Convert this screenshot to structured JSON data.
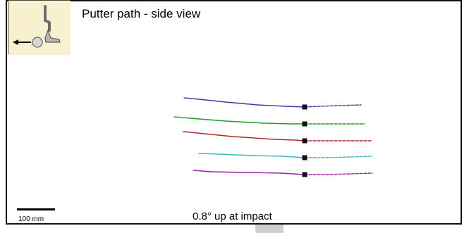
{
  "header": {
    "title": "Putter path - side view",
    "icon_name": "putter-side-view-icon"
  },
  "footer": {
    "scale_label": "100 mm",
    "summary_text": "0.8° up at impact"
  },
  "colors": {
    "frame": "#111111",
    "icon_background": "#f8f0cf",
    "impact_marker": "#111111"
  },
  "chart_data": {
    "type": "line",
    "title": "Putter path - side view",
    "xlabel": "",
    "ylabel": "",
    "legend": "none",
    "grid": false,
    "series": [
      {
        "color": "#3c3ca8",
        "pre_impact_points": [
          [
            261,
            139
          ],
          [
            282,
            141
          ],
          [
            320,
            145
          ],
          [
            365,
            149
          ],
          [
            405,
            151
          ],
          [
            432,
            152
          ]
        ],
        "post_impact_points": [
          [
            432,
            152
          ],
          [
            455,
            151
          ],
          [
            480,
            150
          ],
          [
            512,
            149
          ]
        ],
        "impact_marker": [
          432,
          152
        ]
      },
      {
        "color": "#16a020",
        "pre_impact_points": [
          [
            247,
            166
          ],
          [
            270,
            168
          ],
          [
            320,
            172
          ],
          [
            375,
            175
          ],
          [
            412,
            176
          ],
          [
            432,
            176
          ]
        ],
        "post_impact_points": [
          [
            432,
            176
          ],
          [
            460,
            176
          ],
          [
            490,
            176
          ],
          [
            517,
            176
          ]
        ],
        "impact_marker": [
          432,
          176
        ]
      },
      {
        "color": "#a82828",
        "pre_impact_points": [
          [
            260,
            187
          ],
          [
            280,
            189
          ],
          [
            330,
            194
          ],
          [
            390,
            198
          ],
          [
            418,
            199
          ],
          [
            432,
            200
          ]
        ],
        "post_impact_points": [
          [
            432,
            200
          ],
          [
            462,
            200
          ],
          [
            494,
            200
          ],
          [
            528,
            200
          ]
        ],
        "impact_marker": [
          432,
          200
        ]
      },
      {
        "color": "#42b5bc",
        "pre_impact_points": [
          [
            282,
            218
          ],
          [
            310,
            219
          ],
          [
            360,
            221
          ],
          [
            400,
            222
          ],
          [
            432,
            224
          ]
        ],
        "post_impact_points": [
          [
            432,
            224
          ],
          [
            462,
            224
          ],
          [
            496,
            223
          ],
          [
            528,
            222
          ]
        ],
        "impact_marker": [
          432,
          224
        ]
      },
      {
        "color": "#9b1fa8",
        "pre_impact_points": [
          [
            274,
            242
          ],
          [
            300,
            244
          ],
          [
            350,
            245
          ],
          [
            400,
            246
          ],
          [
            432,
            248
          ]
        ],
        "post_impact_points": [
          [
            432,
            248
          ],
          [
            462,
            248
          ],
          [
            496,
            247
          ],
          [
            528,
            246
          ]
        ],
        "impact_marker": [
          432,
          248
        ]
      }
    ]
  }
}
